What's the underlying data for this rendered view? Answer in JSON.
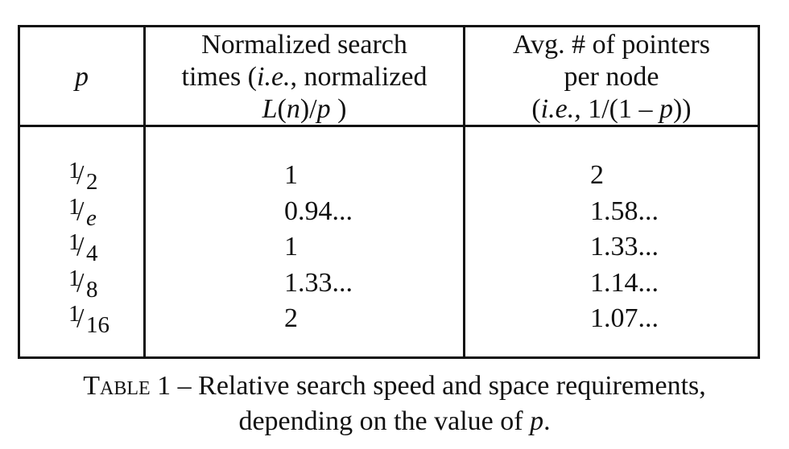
{
  "table": {
    "headers": {
      "p": "p",
      "search_line1": "Normalized search",
      "search_line2_a": "times (",
      "search_line2_b": "i.e.",
      "search_line2_c": ", normalized",
      "search_line3_a": "L",
      "search_line3_b": "(",
      "search_line3_c": "n",
      "search_line3_d": ")/",
      "search_line3_e": "p",
      "search_line3_f": " )",
      "ptr_line1": "Avg. # of pointers",
      "ptr_line2": "per node",
      "ptr_line3_a": "(",
      "ptr_line3_b": "i.e.,",
      "ptr_line3_c": " 1/(1 – ",
      "ptr_line3_d": "p",
      "ptr_line3_e": "))"
    },
    "rows": [
      {
        "num": "1",
        "den": "2",
        "search": "1",
        "pointers": "2"
      },
      {
        "num": "1",
        "den": "e",
        "search": "0.94...",
        "pointers": "1.58..."
      },
      {
        "num": "1",
        "den": "4",
        "search": "1",
        "pointers": "1.33..."
      },
      {
        "num": "1",
        "den": "8",
        "search": "1.33...",
        "pointers": "1.14..."
      },
      {
        "num": "1",
        "den": "16",
        "search": "2",
        "pointers": "1.07..."
      }
    ]
  },
  "caption": {
    "label": "Table 1",
    "line1_rest": " – Relative search speed and space requirements,",
    "line2_a": "depending on the value of ",
    "line2_p": "p",
    "line2_end": "."
  }
}
